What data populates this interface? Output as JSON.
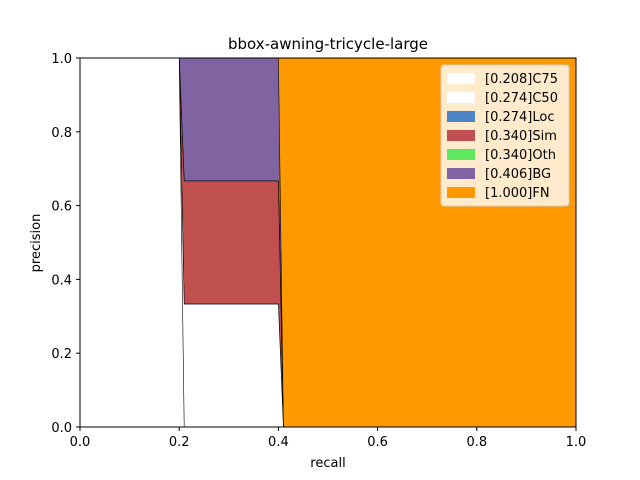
{
  "chart_data": {
    "type": "area",
    "title": "bbox-awning-tricycle-large",
    "xlabel": "recall",
    "ylabel": "precision",
    "xlim": [
      0,
      1
    ],
    "ylim": [
      0,
      1
    ],
    "xticks": [
      "0.0",
      "0.2",
      "0.4",
      "0.6",
      "0.8",
      "1.0"
    ],
    "yticks": [
      "0.0",
      "0.2",
      "0.4",
      "0.6",
      "0.8",
      "1.0"
    ],
    "grid": false,
    "legend_position": "top-right",
    "series": [
      {
        "name": "[0.208]C75",
        "color": "#ffffff",
        "points": [
          [
            0,
            1
          ],
          [
            0.2,
            1
          ],
          [
            0.21,
            0
          ],
          [
            0,
            0
          ]
        ]
      },
      {
        "name": "[0.274]C50",
        "color": "#ffffff",
        "points": [
          [
            0,
            1
          ],
          [
            0.2,
            1
          ],
          [
            0.21,
            0.333
          ],
          [
            0.4,
            0.333
          ],
          [
            0.41,
            0
          ],
          [
            0,
            0
          ]
        ]
      },
      {
        "name": "[0.274]Loc",
        "color": "#4c84c4",
        "points": [
          [
            0,
            1
          ],
          [
            0.2,
            1
          ],
          [
            0.21,
            0.333
          ],
          [
            0.4,
            0.333
          ],
          [
            0.41,
            0
          ],
          [
            0,
            0
          ]
        ]
      },
      {
        "name": "[0.340]Sim",
        "color": "#c0504d",
        "points": [
          [
            0,
            1
          ],
          [
            0.2,
            1
          ],
          [
            0.21,
            0.667
          ],
          [
            0.4,
            0.667
          ],
          [
            0.41,
            0
          ],
          [
            0,
            0
          ]
        ]
      },
      {
        "name": "[0.340]Oth",
        "color": "#5ee85e",
        "points": [
          [
            0,
            1
          ],
          [
            0.2,
            1
          ],
          [
            0.21,
            0.667
          ],
          [
            0.4,
            0.667
          ],
          [
            0.41,
            0
          ],
          [
            0,
            0
          ]
        ]
      },
      {
        "name": "[0.406]BG",
        "color": "#8064a2",
        "points": [
          [
            0,
            1
          ],
          [
            0.4,
            1
          ],
          [
            0.41,
            0
          ],
          [
            0,
            0
          ]
        ]
      },
      {
        "name": "[1.000]FN",
        "color": "#ff9900",
        "points": [
          [
            0,
            1
          ],
          [
            1,
            1
          ],
          [
            1,
            0
          ],
          [
            0,
            0
          ]
        ]
      }
    ]
  }
}
